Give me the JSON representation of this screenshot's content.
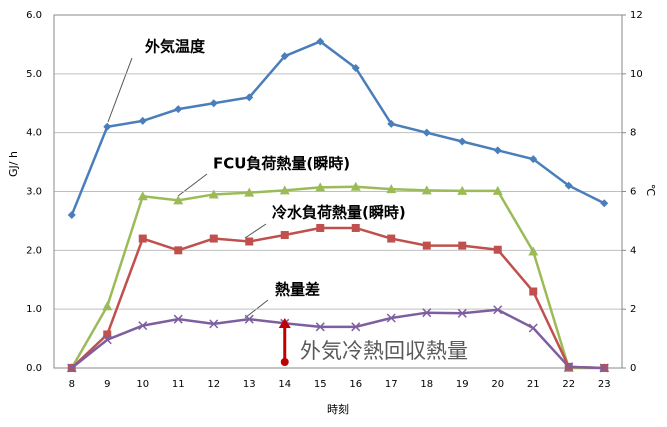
{
  "chart_data": {
    "type": "line",
    "xlabel": "時刻",
    "ylabel": "GJ/ h",
    "y2label": "℃",
    "categories": [
      "8",
      "9",
      "10",
      "11",
      "12",
      "13",
      "14",
      "15",
      "16",
      "17",
      "18",
      "19",
      "20",
      "21",
      "22",
      "23"
    ],
    "ylim": [
      0,
      6
    ],
    "yticks": [
      {
        "value": 0,
        "label": "0.0"
      },
      {
        "value": 1,
        "label": "1.0"
      },
      {
        "value": 2,
        "label": "2.0"
      },
      {
        "value": 3,
        "label": "3.0"
      },
      {
        "value": 4,
        "label": "4.0"
      },
      {
        "value": 5,
        "label": "5.0"
      },
      {
        "value": 6,
        "label": "6.0"
      }
    ],
    "y2lim": [
      0,
      12
    ],
    "y2ticks": [
      0,
      2,
      4,
      6,
      8,
      10,
      12
    ],
    "grid": true,
    "series": [
      {
        "name": "外気温度",
        "color": "#4a7ebb",
        "marker": "diamond",
        "axis": "y2",
        "values": [
          5.2,
          8.2,
          8.4,
          8.8,
          9.0,
          9.2,
          10.6,
          11.1,
          10.2,
          8.3,
          8.0,
          7.7,
          7.4,
          7.1,
          6.2,
          5.6
        ]
      },
      {
        "name": "FCU負荷熱量(瞬時)",
        "color": "#9bbb59",
        "marker": "triangle",
        "values": [
          0,
          1.05,
          2.92,
          2.85,
          2.95,
          2.98,
          3.02,
          3.07,
          3.08,
          3.04,
          3.02,
          3.01,
          3.01,
          1.98,
          0,
          0
        ]
      },
      {
        "name": "冷水負荷熱量(瞬時)",
        "color": "#c0504d",
        "marker": "square",
        "values": [
          0,
          0.57,
          2.2,
          2.0,
          2.2,
          2.15,
          2.26,
          2.38,
          2.38,
          2.2,
          2.08,
          2.08,
          2.01,
          1.3,
          0.02,
          0
        ]
      },
      {
        "name": "熱量差",
        "color": "#7d5fa0",
        "marker": "x",
        "values": [
          0,
          0.48,
          0.72,
          0.83,
          0.75,
          0.83,
          0.76,
          0.7,
          0.7,
          0.85,
          0.94,
          0.93,
          0.99,
          0.68,
          0.02,
          0
        ]
      }
    ],
    "annotations": [
      {
        "text": "外気冷熱回収熱量"
      }
    ]
  }
}
